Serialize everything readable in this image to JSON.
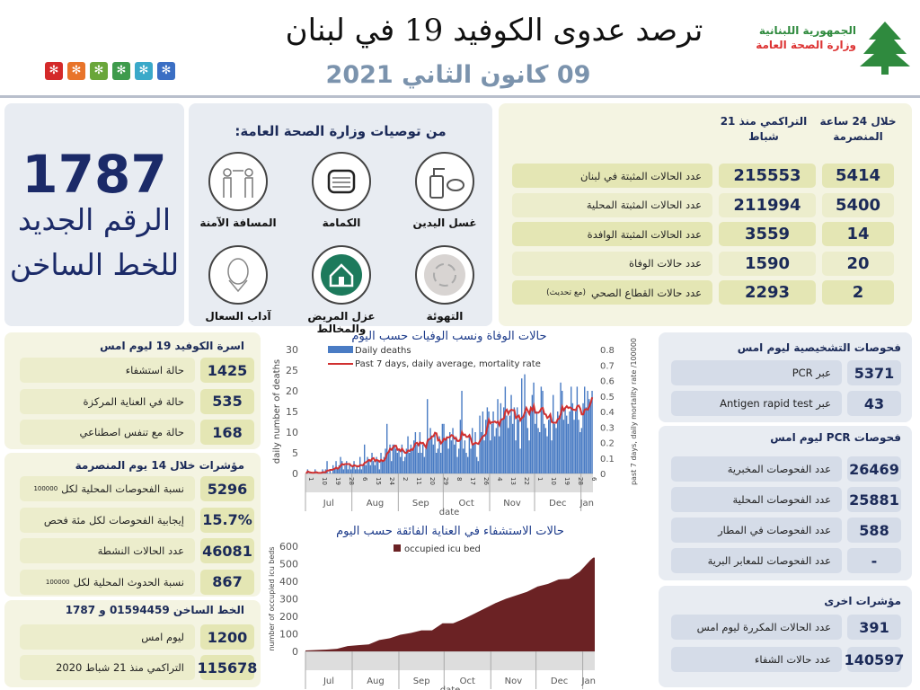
{
  "header": {
    "title": "ترصد عدوى الكوفيد 19 في لبنان",
    "date": "09 كانون الثاني 2021",
    "logo_line1": "الجمهورية اللبنانية",
    "logo_line2": "وزارة الصحة العامة",
    "square_colors": [
      "#d42a2a",
      "#e8742a",
      "#6aa63a",
      "#3f9b4c",
      "#3aa9c9",
      "#3b6fc4"
    ]
  },
  "hotline": {
    "number": "1787",
    "line1": "الرقم الجديد",
    "line2": "للخط الساخن"
  },
  "recommendations": {
    "title": "من توصيات وزارة الصحة العامة:",
    "items": [
      {
        "label": "غسل اليدين",
        "icon": "hand-sanitizer-icon"
      },
      {
        "label": "الكمامة",
        "icon": "face-mask-icon"
      },
      {
        "label": "المسافة الآمنة",
        "icon": "social-distance-icon"
      },
      {
        "label": "التهوئة",
        "icon": "ventilation-icon"
      },
      {
        "label": "عزل المريض والمخالط",
        "icon": "home-isolation-icon"
      },
      {
        "label": "آداب السعال",
        "icon": "cough-etiquette-icon"
      }
    ]
  },
  "stats": {
    "col_24h": "خلال 24 ساعة المنصرمة",
    "col_cum": "التراكمي منذ 21 شباط",
    "rows": [
      {
        "label": "عدد الحالات المثبتة في لبنان",
        "cum": "215553",
        "day": "5414"
      },
      {
        "label": "عدد الحالات المثبتة المحلية",
        "cum": "211994",
        "day": "5400"
      },
      {
        "label": "عدد الحالات المثبتة الوافدة",
        "cum": "3559",
        "day": "14"
      },
      {
        "label": "عدد حالات الوفاة",
        "cum": "1590",
        "day": "20"
      },
      {
        "label": "عدد حالات القطاع الصحي",
        "note": "(مع تحديث)",
        "cum": "2293",
        "day": "2"
      }
    ]
  },
  "covid_beds": {
    "title": "اسرة الكوفيد 19 ليوم امس",
    "rows": [
      {
        "label": "حالة استشفاء",
        "value": "1425"
      },
      {
        "label": "حالة في العناية المركزة",
        "value": "535"
      },
      {
        "label": "حالة مع تنفس اصطناعي",
        "value": "168"
      }
    ]
  },
  "indicators14": {
    "title": "مؤشرات خلال 14 يوم المنصرمة",
    "rows": [
      {
        "label": "نسبة الفحوصات  المحلية لكل",
        "suffix": "100000",
        "value": "5296"
      },
      {
        "label": "إيجابية الفحوصات لكل مئة فحص",
        "value": "15.7%"
      },
      {
        "label": "عدد الحالات النشطة",
        "value": "46081"
      },
      {
        "label": "نسبة الحدوث المحلية لكل",
        "suffix": "100000",
        "value": "867"
      }
    ]
  },
  "hotline_calls": {
    "title": "الخط الساخن 01594459 و 1787",
    "rows": [
      {
        "label": "ليوم امس",
        "value": "1200"
      },
      {
        "label": "التراكمي منذ 21 شباط 2020",
        "value": "115678"
      }
    ]
  },
  "diagnostic": {
    "title": "فحوصات التشخيصية ليوم امس",
    "rows": [
      {
        "label": "عبر PCR",
        "value": "5371"
      },
      {
        "label": "عبر Antigen rapid test",
        "value": "43"
      }
    ]
  },
  "pcr": {
    "title": "فحوصات PCR ليوم امس",
    "rows": [
      {
        "label": "عدد الفحوصات المخبرية",
        "value": "26469"
      },
      {
        "label": "عدد الفحوصات المحلية",
        "value": "25881"
      },
      {
        "label": "عدد الفحوصات في المطار",
        "value": "588"
      },
      {
        "label": "عدد الفحوصات للمعابر البرية",
        "value": "-"
      }
    ]
  },
  "other": {
    "title": "مؤشرات اخرى",
    "rows": [
      {
        "label": "عدد الحالات المكررة  ليوم امس",
        "value": "391"
      },
      {
        "label": "عدد حالات الشفاء",
        "value": "140597"
      }
    ]
  },
  "chart_data": [
    {
      "type": "bar",
      "title": "حالات الوفاة ونسب الوفيات حسب اليوم",
      "xlabel": "date",
      "ylabel": "daily number of deaths",
      "y2label": "past 7 days, daily mortality rate /100000",
      "ylim": [
        0,
        30
      ],
      "y2lim": [
        0,
        0.8
      ],
      "yticks": [
        "0",
        "5",
        "10",
        "15",
        "20",
        "25",
        "30"
      ],
      "y2ticks": [
        "0",
        "0.1",
        "0.2",
        "0.3",
        "0.4",
        "0.5",
        "0.6",
        "0.7",
        "0.8"
      ],
      "legend": [
        "Daily deaths",
        "Past 7 days, daily average, mortality rate"
      ],
      "colors": [
        "#4a7cc4",
        "#d03030"
      ],
      "start_date": "Jul 1",
      "months": [
        "Jul",
        "Aug",
        "Sep",
        "Oct",
        "Nov",
        "Dec",
        "Jan"
      ],
      "month_days": [
        31,
        31,
        30,
        31,
        30,
        31,
        8
      ],
      "day_ticks": [
        "1",
        "10",
        "19",
        "28",
        "6",
        "15",
        "24",
        "2",
        "11",
        "20",
        "29",
        "8",
        "17",
        "26",
        "4",
        "13",
        "22",
        "1",
        "10",
        "19",
        "28",
        "6"
      ],
      "values": [
        0,
        1,
        0,
        0,
        0,
        0,
        1,
        0,
        0,
        0,
        0,
        1,
        0,
        1,
        3,
        0,
        1,
        0,
        2,
        1,
        3,
        1,
        2,
        4,
        3,
        1,
        2,
        3,
        1,
        2,
        1,
        2,
        3,
        1,
        2,
        1,
        4,
        1,
        2,
        7,
        2,
        4,
        3,
        2,
        5,
        3,
        2,
        4,
        3,
        1,
        5,
        3,
        4,
        6,
        12,
        5,
        7,
        3,
        7,
        7,
        6,
        5,
        6,
        4,
        7,
        3,
        4,
        6,
        9,
        5,
        7,
        6,
        8,
        10,
        7,
        5,
        10,
        5,
        7,
        4,
        6,
        18,
        8,
        11,
        9,
        7,
        10,
        5,
        6,
        9,
        5,
        12,
        12,
        8,
        9,
        6,
        10,
        8,
        11,
        7,
        9,
        4,
        6,
        13,
        20,
        6,
        8,
        5,
        4,
        9,
        6,
        11,
        7,
        10,
        4,
        3,
        14,
        10,
        15,
        8,
        13,
        16,
        15,
        8,
        12,
        15,
        9,
        11,
        18,
        9,
        17,
        13,
        16,
        21,
        14,
        11,
        14,
        19,
        12,
        16,
        8,
        16,
        13,
        6,
        23,
        14,
        24,
        15,
        11,
        8,
        16,
        19,
        22,
        12,
        15,
        11,
        10,
        21,
        20,
        12,
        11,
        9,
        13,
        14,
        8,
        19,
        12,
        11,
        15,
        14,
        22,
        20,
        13,
        16,
        14,
        12,
        15,
        21,
        17,
        13,
        15,
        21,
        13,
        10,
        11,
        17,
        21,
        16,
        20,
        18,
        17,
        20
      ]
    },
    {
      "type": "area",
      "title": "حالات الاستشفاء في العناية الفائقة حسب اليوم",
      "xlabel": "date",
      "ylabel": "number of occupied icu beds",
      "ylim": [
        0,
        600
      ],
      "yticks": [
        "0",
        "100",
        "200",
        "300",
        "400",
        "500",
        "600"
      ],
      "legend": [
        "occupied icu bed"
      ],
      "color": "#6b2224",
      "months": [
        "Jul",
        "Aug",
        "Sep",
        "Oct",
        "Nov",
        "Dec",
        "Jan"
      ],
      "points_day_index": [
        0,
        7,
        14,
        21,
        28,
        35,
        42,
        49,
        56,
        63,
        70,
        77,
        84,
        91,
        98,
        105,
        112,
        119,
        126,
        133,
        140,
        147,
        154,
        161,
        168,
        175,
        182,
        189,
        191
      ],
      "values": [
        5,
        8,
        10,
        15,
        30,
        35,
        40,
        65,
        75,
        95,
        105,
        120,
        120,
        160,
        160,
        185,
        215,
        245,
        275,
        300,
        320,
        340,
        370,
        385,
        410,
        415,
        455,
        520,
        535
      ]
    }
  ]
}
